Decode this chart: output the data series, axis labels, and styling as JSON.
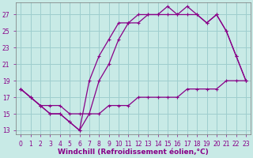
{
  "xlabel": "Windchill (Refroidissement éolien,°C)",
  "xlim": [
    -0.5,
    23.5
  ],
  "ylim": [
    12.5,
    28.5
  ],
  "xticks": [
    0,
    1,
    2,
    3,
    4,
    5,
    6,
    7,
    8,
    9,
    10,
    11,
    12,
    13,
    14,
    15,
    16,
    17,
    18,
    19,
    20,
    21,
    22,
    23
  ],
  "yticks": [
    13,
    15,
    17,
    19,
    21,
    23,
    25,
    27
  ],
  "bg_color": "#c8eae6",
  "grid_color": "#9ecece",
  "line_color": "#880088",
  "line1_x": [
    0,
    1,
    2,
    3,
    4,
    5,
    6,
    7,
    8,
    9,
    10,
    11,
    12,
    13,
    14,
    15,
    16,
    17,
    18,
    19,
    20,
    21,
    22,
    23
  ],
  "line1_y": [
    18,
    17,
    16,
    15,
    15,
    14,
    13,
    19,
    22,
    24,
    26,
    26,
    27,
    27,
    27,
    28,
    27,
    27,
    27,
    26,
    27,
    25,
    22,
    19
  ],
  "line2_x": [
    0,
    1,
    2,
    3,
    4,
    5,
    6,
    7,
    8,
    9,
    10,
    11,
    12,
    13,
    14,
    15,
    16,
    17,
    18,
    19,
    20,
    21,
    22,
    23
  ],
  "line2_y": [
    18,
    17,
    16,
    15,
    15,
    14,
    13,
    15,
    19,
    21,
    24,
    26,
    26,
    27,
    27,
    27,
    27,
    28,
    27,
    26,
    27,
    25,
    22,
    19
  ],
  "line3_x": [
    0,
    1,
    2,
    3,
    4,
    5,
    6,
    7,
    8,
    9,
    10,
    11,
    12,
    13,
    14,
    15,
    16,
    17,
    18,
    19,
    20,
    21,
    22,
    23
  ],
  "line3_y": [
    18,
    17,
    16,
    16,
    16,
    15,
    15,
    15,
    15,
    16,
    16,
    16,
    17,
    17,
    17,
    17,
    17,
    18,
    18,
    18,
    18,
    19,
    19,
    19
  ],
  "tick_fontsize": 5.5,
  "xlabel_fontsize": 6.5
}
